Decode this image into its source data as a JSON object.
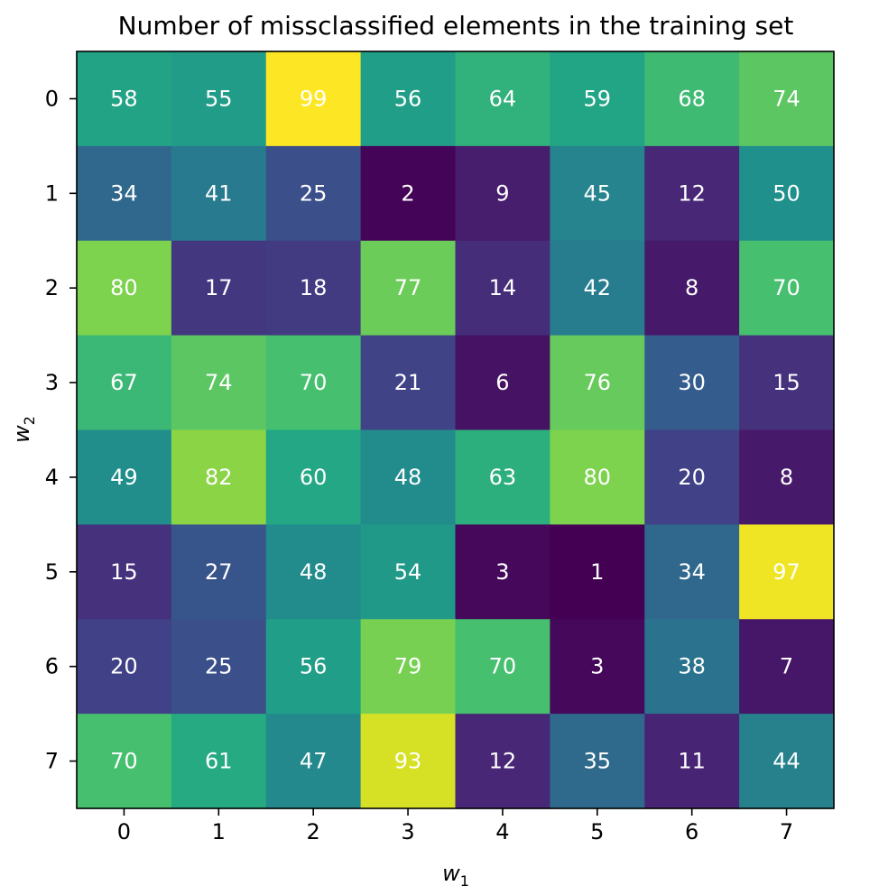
{
  "chart_data": {
    "type": "heatmap",
    "title": "Number of missclassified elements in the training set",
    "xlabel": {
      "base": "w",
      "sub": "1"
    },
    "ylabel": {
      "base": "w",
      "sub": "2"
    },
    "x_ticks": [
      "0",
      "1",
      "2",
      "3",
      "4",
      "5",
      "6",
      "7"
    ],
    "y_ticks": [
      "0",
      "1",
      "2",
      "3",
      "4",
      "5",
      "6",
      "7"
    ],
    "colormap": "viridis",
    "value_range": [
      1,
      99
    ],
    "grid": false,
    "values": [
      [
        58,
        55,
        99,
        56,
        64,
        59,
        68,
        74
      ],
      [
        34,
        41,
        25,
        2,
        9,
        45,
        12,
        50
      ],
      [
        80,
        17,
        18,
        77,
        14,
        42,
        8,
        70
      ],
      [
        67,
        74,
        70,
        21,
        6,
        76,
        30,
        15
      ],
      [
        49,
        82,
        60,
        48,
        63,
        80,
        20,
        8
      ],
      [
        15,
        27,
        48,
        54,
        3,
        1,
        34,
        97
      ],
      [
        20,
        25,
        56,
        79,
        70,
        3,
        38,
        7
      ],
      [
        70,
        61,
        47,
        93,
        12,
        35,
        11,
        44
      ]
    ]
  }
}
